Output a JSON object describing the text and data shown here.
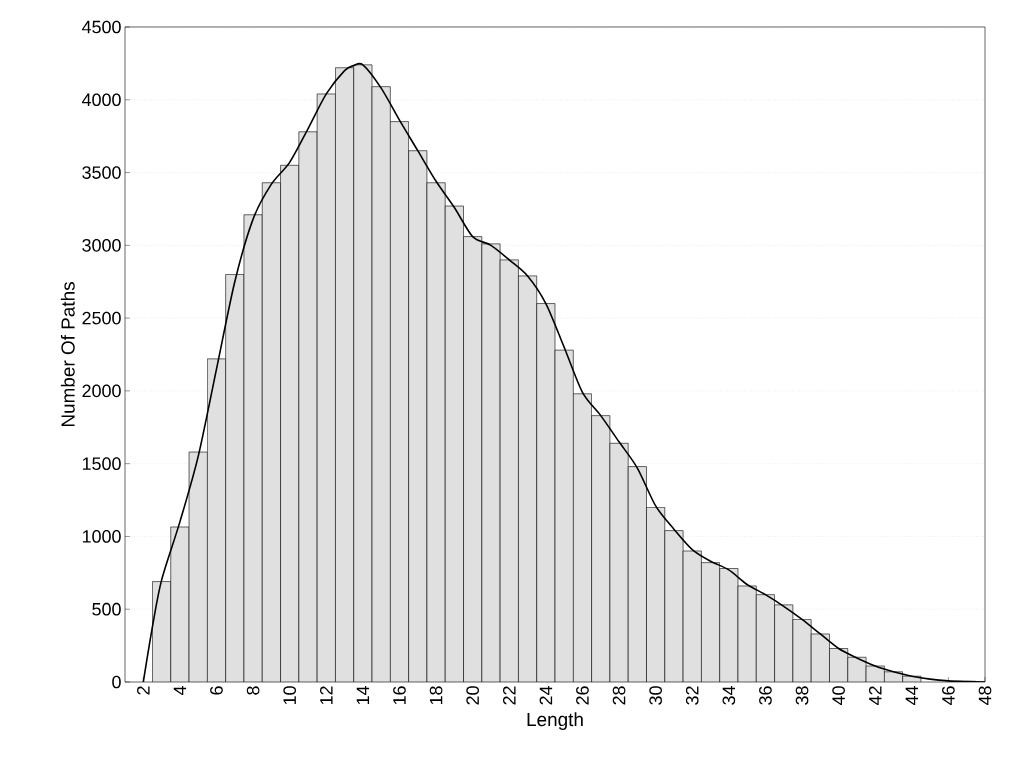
{
  "chart_data": {
    "type": "histogram",
    "xlabel": "Length",
    "ylabel": "Number Of Paths",
    "xlim": [
      1,
      48
    ],
    "ylim": [
      0,
      4500
    ],
    "xticks": [
      2,
      4,
      6,
      8,
      10,
      12,
      14,
      16,
      18,
      20,
      22,
      24,
      26,
      28,
      30,
      32,
      34,
      36,
      38,
      40,
      42,
      44,
      46,
      48
    ],
    "yticks": [
      0,
      500,
      1000,
      1500,
      2000,
      2500,
      3000,
      3500,
      4000,
      4500
    ],
    "grid": "y",
    "series": [
      {
        "color": "#e0e0e0",
        "bins": [
          2.5,
          3.5,
          4.5,
          5.5,
          6.5,
          7.5,
          8.5,
          9.5,
          10.5,
          11.5,
          12.5,
          13.5,
          14.5,
          15.5,
          16.5,
          17.5,
          18.5,
          19.5,
          20.5,
          21.5,
          22.5,
          23.5,
          24.5,
          25.5,
          26.5,
          27.5,
          28.5,
          29.5,
          30.5,
          31.5,
          32.5,
          33.5,
          34.5,
          35.5,
          36.5,
          37.5,
          38.5,
          39.5,
          40.5,
          41.5,
          42.5,
          43.5,
          44.5,
          45.5,
          46.5,
          47.5
        ],
        "values": [
          690,
          1065,
          1580,
          2220,
          2800,
          3210,
          3430,
          3550,
          3780,
          4040,
          4220,
          4240,
          4090,
          3850,
          3650,
          3430,
          3270,
          3060,
          3010,
          2900,
          2790,
          2600,
          2280,
          1980,
          1830,
          1640,
          1480,
          1200,
          1040,
          900,
          820,
          780,
          660,
          600,
          530,
          430,
          330,
          230,
          170,
          110,
          70,
          40,
          null,
          null,
          5
        ]
      },
      {
        "type": "line",
        "color": "#000000",
        "line_style": "solid",
        "x": [
          2,
          2.5,
          3,
          4,
          5,
          6,
          7,
          8,
          9,
          10,
          11,
          12,
          13,
          13.5,
          14,
          15,
          16,
          17,
          18,
          19,
          20,
          21,
          22,
          23,
          24,
          25,
          26,
          27,
          28,
          29,
          30,
          31,
          32,
          33,
          34,
          35,
          36,
          37,
          38,
          39,
          40,
          41,
          42,
          43,
          44,
          45,
          46,
          47,
          48
        ],
        "values": [
          0,
          380,
          700,
          1100,
          1550,
          2150,
          2750,
          3180,
          3420,
          3570,
          3800,
          4040,
          4200,
          4235,
          4240,
          4080,
          3860,
          3650,
          3440,
          3260,
          3060,
          3000,
          2900,
          2790,
          2600,
          2300,
          1990,
          1830,
          1650,
          1470,
          1210,
          1050,
          910,
          830,
          770,
          670,
          600,
          520,
          430,
          330,
          230,
          165,
          110,
          70,
          40,
          20,
          8,
          3,
          0
        ]
      }
    ]
  }
}
